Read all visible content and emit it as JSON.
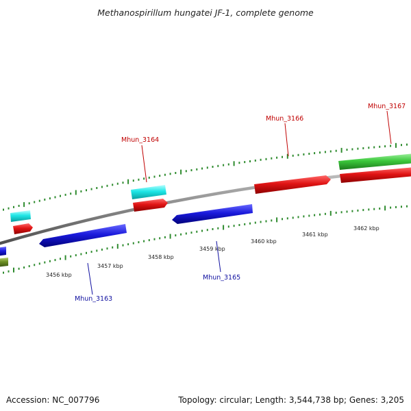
{
  "title": "Methanospirillum hungatei JF-1, complete genome",
  "footer": {
    "accession": "Accession: NC_007796",
    "summary": "Topology: circular; Length: 3,544,738 bp; Genes: 3,205"
  },
  "ruler": {
    "tick_labels": [
      "3456 kbp",
      "3457 kbp",
      "3458 kbp",
      "3459 kbp",
      "3460 kbp",
      "3461 kbp",
      "3462 kbp"
    ]
  },
  "genes": [
    {
      "id": "g3163",
      "label": "Mhun_3163",
      "strand": "reverse",
      "color": "#1a1adc"
    },
    {
      "id": "g3164",
      "label": "Mhun_3164",
      "strand": "forward",
      "color": "#e01414"
    },
    {
      "id": "g3165",
      "label": "Mhun_3165",
      "strand": "reverse",
      "color": "#1a1adc"
    },
    {
      "id": "g3166",
      "label": "Mhun_3166",
      "strand": "forward",
      "color": "#e01414"
    },
    {
      "id": "g3167",
      "label": "Mhun_3167",
      "strand": "forward",
      "color": "#e01414"
    }
  ],
  "colors": {
    "backbone": "#8a8a8a",
    "tick": "#2e8b2e",
    "cds_forward": "#e01414",
    "cds_reverse": "#1a1adc",
    "rna": "#1ee6e6",
    "green_feature": "#3cc83c",
    "olive_feature": "#6b8e23",
    "label_forward": "#c00000",
    "label_reverse": "#1010a0"
  }
}
